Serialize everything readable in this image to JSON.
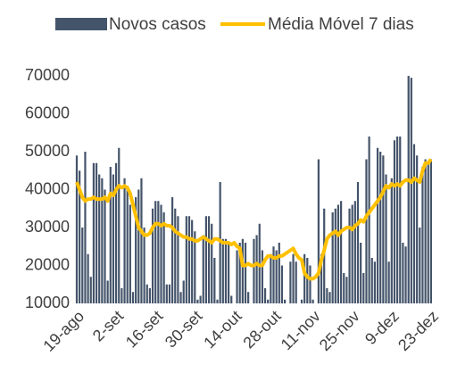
{
  "chart_data": {
    "type": "bar",
    "categories": [
      "19-ago",
      null,
      null,
      null,
      null,
      null,
      null,
      null,
      null,
      null,
      null,
      null,
      null,
      null,
      "2-set",
      null,
      null,
      null,
      null,
      null,
      null,
      null,
      null,
      null,
      null,
      null,
      null,
      null,
      "16-set",
      null,
      null,
      null,
      null,
      null,
      null,
      null,
      null,
      null,
      null,
      null,
      null,
      null,
      "30-set",
      null,
      null,
      null,
      null,
      null,
      null,
      null,
      null,
      null,
      null,
      null,
      null,
      null,
      "14-out",
      null,
      null,
      null,
      null,
      null,
      null,
      null,
      null,
      null,
      null,
      null,
      null,
      null,
      "28-out",
      null,
      null,
      null,
      null,
      null,
      null,
      null,
      null,
      null,
      null,
      null,
      null,
      null,
      "11-nov",
      null,
      null,
      null,
      null,
      null,
      null,
      null,
      null,
      null,
      null,
      null,
      null,
      null,
      "25-nov",
      null,
      null,
      null,
      null,
      null,
      null,
      null,
      null,
      null,
      null,
      null,
      null,
      null,
      "9-dez",
      null,
      null,
      null,
      null,
      null,
      null,
      null,
      null,
      null,
      null,
      null,
      null,
      null,
      "23-dez"
    ],
    "series": [
      {
        "name": "Novos casos",
        "type": "bar",
        "color": "#44546a",
        "values": [
          49000,
          45000,
          30000,
          50000,
          23000,
          17000,
          47000,
          47000,
          44000,
          43000,
          40000,
          16000,
          46000,
          44000,
          47000,
          51000,
          14000,
          43000,
          41000,
          36000,
          13000,
          38000,
          40000,
          43000,
          30000,
          15000,
          14000,
          35000,
          37000,
          37000,
          36000,
          34000,
          15000,
          15000,
          38000,
          35000,
          33000,
          13000,
          16000,
          33000,
          33000,
          32000,
          29000,
          11000,
          12000,
          28000,
          33000,
          33000,
          31000,
          22000,
          11000,
          42000,
          27000,
          27000,
          26000,
          12000,
          10000,
          24000,
          26000,
          27000,
          26000,
          13000,
          10000,
          27000,
          28000,
          31000,
          24000,
          14000,
          11000,
          23000,
          25000,
          24000,
          26000,
          20000,
          11000,
          10000,
          21000,
          23000,
          21000,
          10000,
          11000,
          23000,
          22000,
          20000,
          11000,
          10000,
          48000,
          23000,
          35000,
          14000,
          13000,
          34000,
          35000,
          36000,
          37000,
          18000,
          17000,
          35000,
          36000,
          37000,
          42000,
          26000,
          18000,
          48000,
          54000,
          22000,
          21000,
          51000,
          50000,
          49000,
          44000,
          21000,
          43000,
          53000,
          54000,
          54000,
          26000,
          25000,
          70000,
          69500,
          52000,
          49000,
          30000,
          46000,
          48000,
          47000,
          48000
        ]
      },
      {
        "name": "Média Móvel 7 dias",
        "type": "line",
        "color": "#ffc000",
        "values": [
          42000,
          40000,
          38000,
          37000,
          37500,
          37500,
          38000,
          37500,
          37500,
          37500,
          38000,
          37000,
          39000,
          38500,
          40000,
          41000,
          40500,
          41000,
          40500,
          39000,
          36000,
          33000,
          30000,
          29000,
          28000,
          28000,
          28500,
          30000,
          31000,
          31000,
          30500,
          31000,
          30500,
          30500,
          30000,
          29000,
          28500,
          28000,
          27500,
          27500,
          27000,
          27000,
          26500,
          26500,
          27000,
          27500,
          27000,
          26500,
          26000,
          27000,
          27000,
          26500,
          26000,
          26000,
          26000,
          25500,
          26000,
          25000,
          24500,
          20000,
          20000,
          20500,
          20000,
          20000,
          20500,
          20000,
          20000,
          21500,
          22500,
          22500,
          22000,
          22000,
          22500,
          22500,
          23000,
          23500,
          24000,
          24500,
          23000,
          22000,
          21500,
          18000,
          17000,
          16500,
          16500,
          17000,
          18000,
          21500,
          24000,
          27000,
          28000,
          28500,
          29000,
          28000,
          29000,
          29500,
          30000,
          30000,
          29500,
          30500,
          31000,
          32000,
          31500,
          33000,
          34000,
          35000,
          36000,
          37000,
          38000,
          39500,
          41000,
          40500,
          41500,
          41000,
          41500,
          41000,
          42000,
          42500,
          42500,
          42000,
          43000,
          42500,
          42000,
          45000,
          47000,
          47000,
          48000
        ]
      }
    ],
    "ylim": [
      10000,
      70000
    ],
    "yticks": [
      10000,
      20000,
      30000,
      40000,
      50000,
      60000,
      70000
    ],
    "grid": false,
    "legend": "top"
  }
}
